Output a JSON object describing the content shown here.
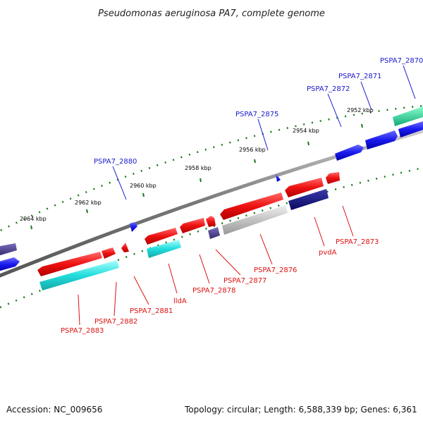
{
  "title": "Pseudomonas aeruginosa PA7, complete genome",
  "footer": {
    "accession": "Accession: NC_009656",
    "summary": "Topology: circular; Length: 6,588,339 bp; Genes: 6,361"
  },
  "ticks": [
    {
      "label": "2964 kbp"
    },
    {
      "label": "2962 kbp"
    },
    {
      "label": "2960 kbp"
    },
    {
      "label": "2958 kbp"
    },
    {
      "label": "2956 kbp"
    },
    {
      "label": "2954 kbp"
    },
    {
      "label": "2952 kbp"
    }
  ],
  "forward_labels": [
    {
      "text": "PSPA7_2880"
    },
    {
      "text": "PSPA7_2875"
    },
    {
      "text": "PSPA7_2872"
    },
    {
      "text": "PSPA7_2871"
    },
    {
      "text": "PSPA7_2870"
    }
  ],
  "reverse_labels": [
    {
      "text": "PSPA7_2883"
    },
    {
      "text": "PSPA7_2882"
    },
    {
      "text": "PSPA7_2881"
    },
    {
      "text": "lldA"
    },
    {
      "text": "PSPA7_2878"
    },
    {
      "text": "PSPA7_2877"
    },
    {
      "text": "PSPA7_2876"
    },
    {
      "text": "pvdA"
    },
    {
      "text": "PSPA7_2873"
    }
  ],
  "colors": {
    "backbone": "#888888",
    "tick_dots": "#1a7a1a",
    "forward_gene": "#1a1aee",
    "reverse_gene": "#ee1111",
    "rna_cyan": "#22dddd",
    "navy": "#101080",
    "slate": "#4a3d88",
    "grey": "#bbbbbb",
    "teal": "#22dd99",
    "forward_label": "#1a1acd",
    "reverse_label": "#dd1111"
  }
}
